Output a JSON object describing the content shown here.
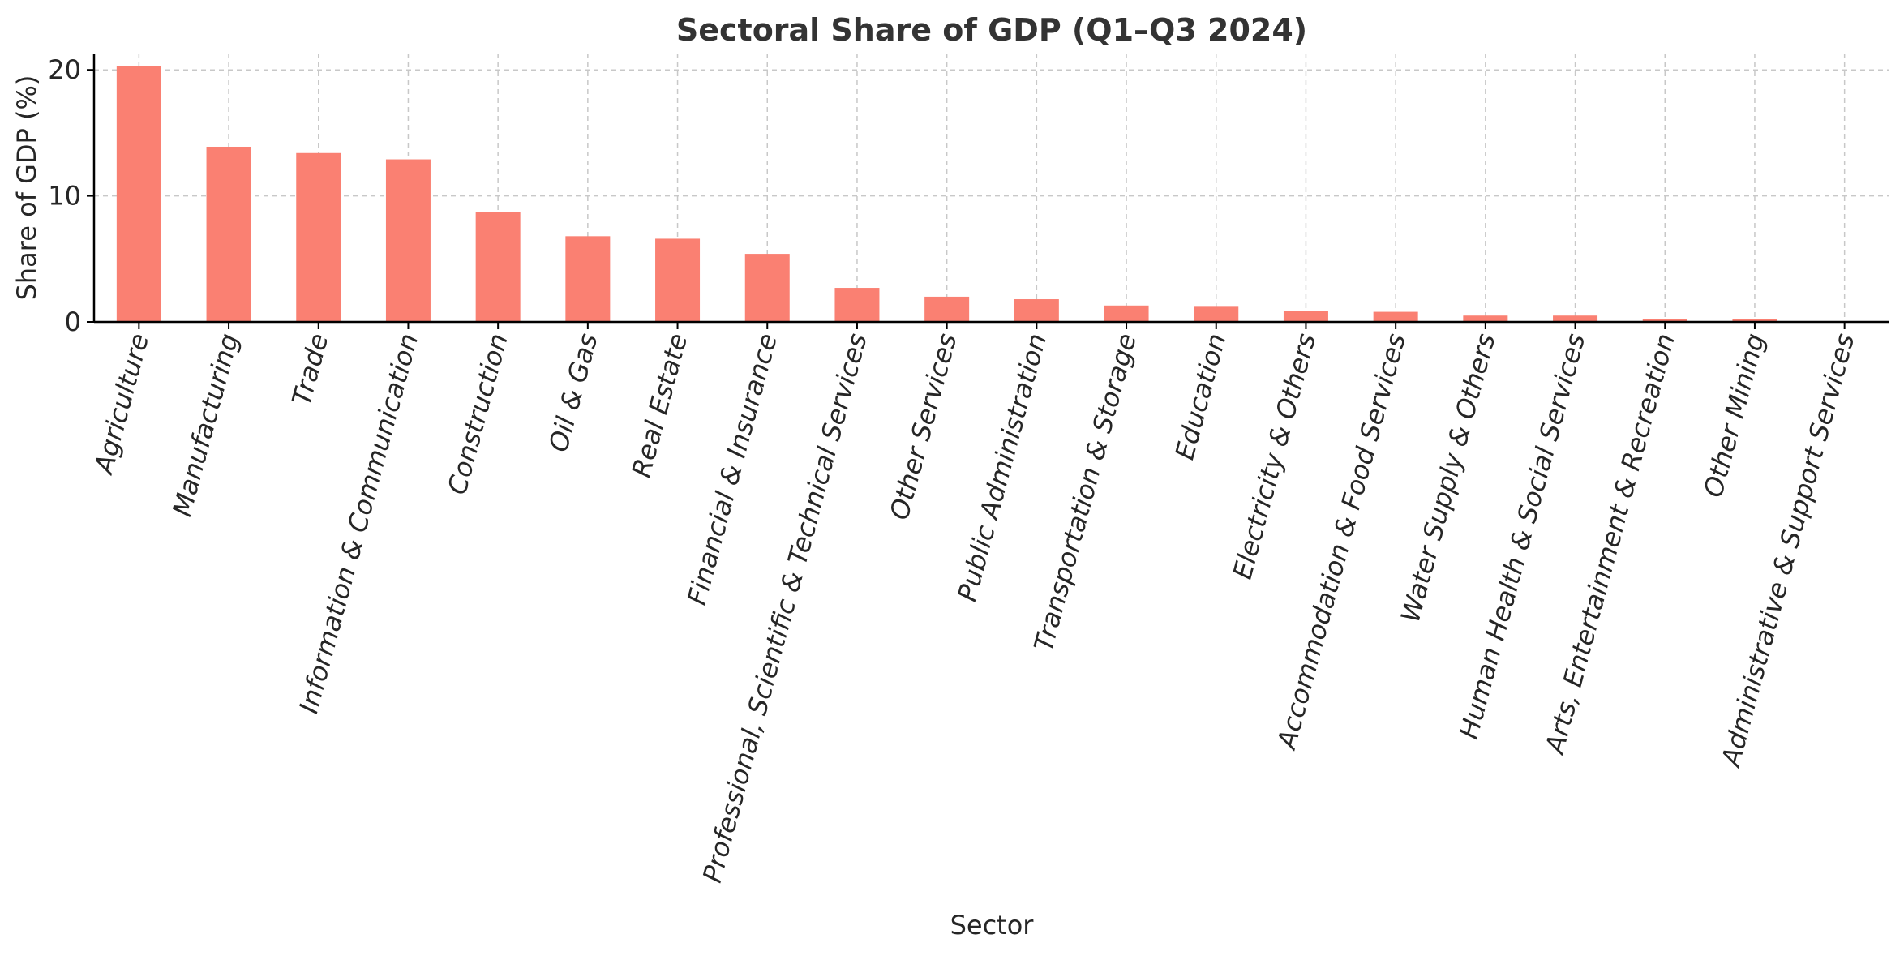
{
  "chart_data": {
    "type": "bar",
    "title": "Sectoral Share of GDP (Q1–Q3 2024)",
    "xlabel": "Sector",
    "ylabel": "Share of GDP (%)",
    "ylim": [
      0,
      21.3
    ],
    "yticks": [
      0,
      10,
      20
    ],
    "grid": true,
    "bar_color": "#FA8072",
    "categories": [
      "Agriculture",
      "Manufacturing",
      "Trade",
      "Information & Communication",
      "Construction",
      "Oil & Gas",
      "Real Estate",
      "Financial & Insurance",
      "Professional, Scientific & Technical Services",
      "Other Services",
      "Public Administration",
      "Transportation & Storage",
      "Education",
      "Electricity & Others",
      "Accommodation & Food Services",
      "Water Supply & Others",
      "Human Health & Social Services",
      "Arts, Entertainment & Recreation",
      "Other Mining",
      "Administrative & Support Services"
    ],
    "values": [
      20.3,
      13.9,
      13.4,
      12.9,
      8.7,
      6.8,
      6.6,
      5.4,
      2.7,
      2.0,
      1.8,
      1.3,
      1.2,
      0.9,
      0.8,
      0.5,
      0.5,
      0.2,
      0.2,
      0.05
    ]
  }
}
